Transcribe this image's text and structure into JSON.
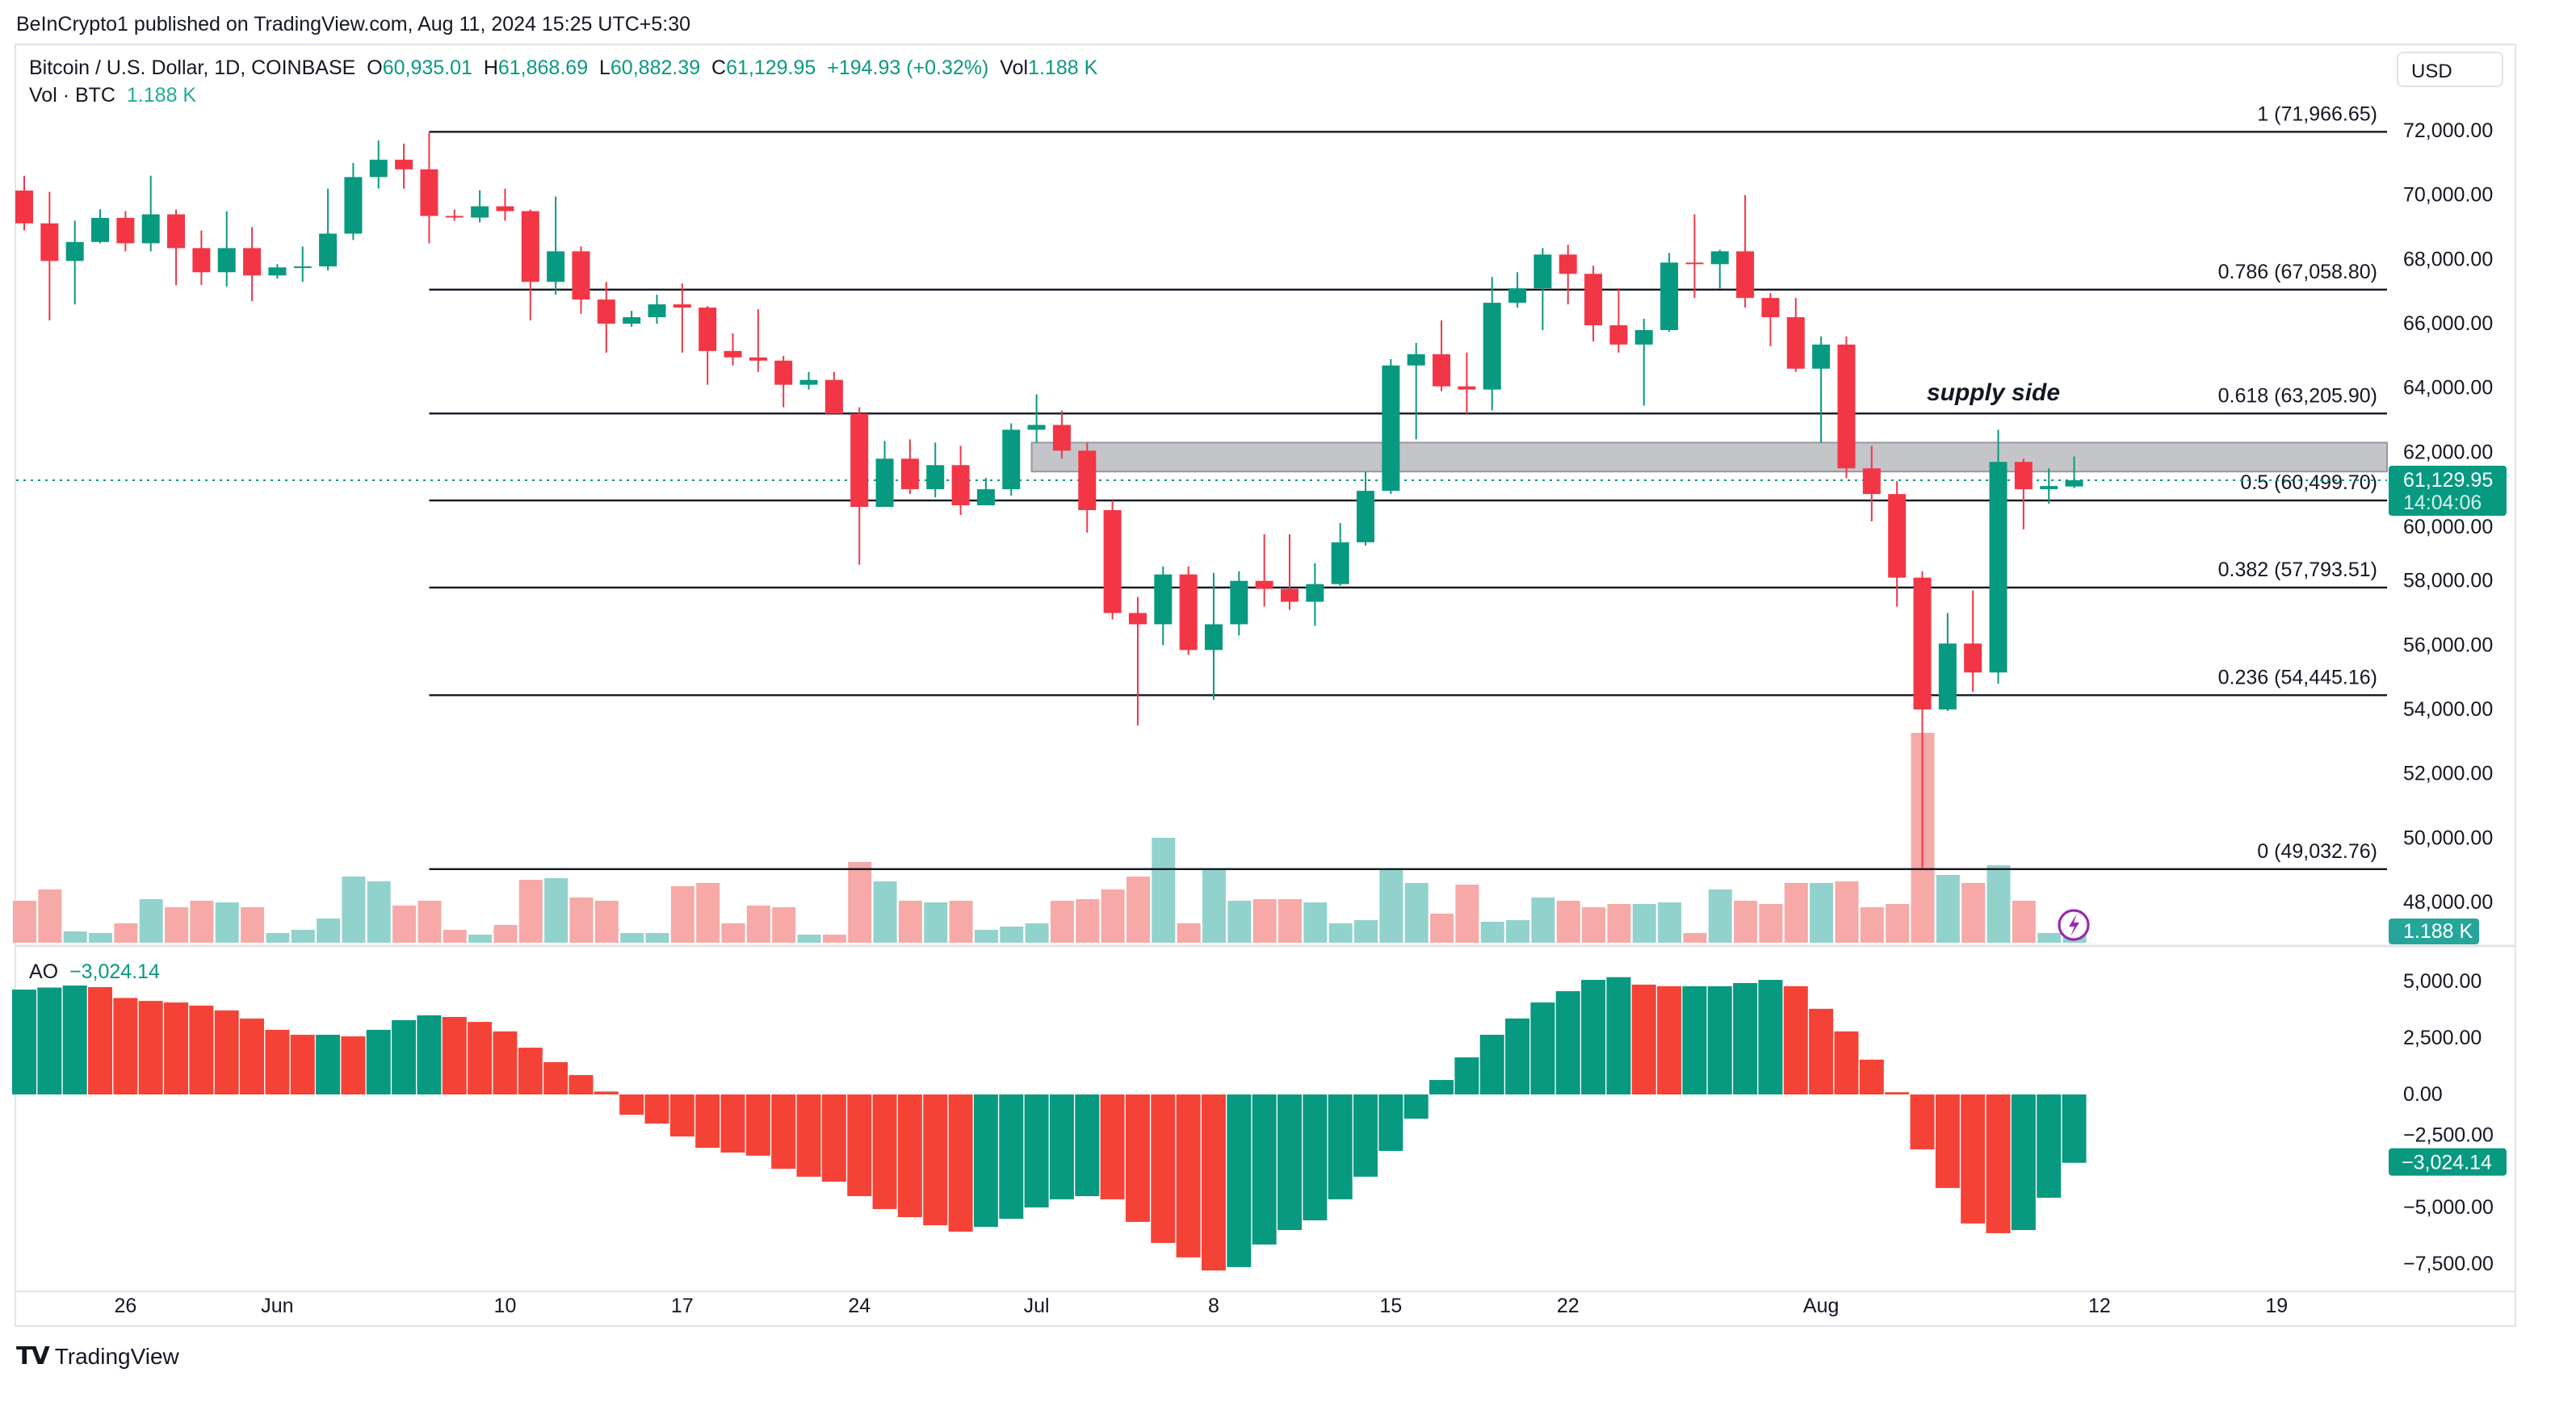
{
  "published": "BeInCrypto1 published on TradingView.com, Aug 11, 2024 15:25 UTC+5:30",
  "legend": {
    "symbol": "Bitcoin / U.S. Dollar, 1D, COINBASE",
    "o_label": "O",
    "o": "60,935.01",
    "h_label": "H",
    "h": "61,868.69",
    "l_label": "L",
    "l": "60,882.39",
    "c_label": "C",
    "c": "61,129.95",
    "change": "+194.93 (+0.32%)",
    "vol_label": "Vol",
    "vol": "1.188 K",
    "vol_series": "Vol · BTC",
    "vol_series_value": "1.188 K"
  },
  "currency_button": "USD",
  "ao_legend": {
    "label": "AO",
    "value": "−3,024.14"
  },
  "price_badge": {
    "price": "61,129.95",
    "countdown": "14:04:06"
  },
  "volume_badge": "1.188 K",
  "ao_badge": "−3,024.14",
  "annotation": "supply side",
  "brand": "TradingView",
  "colors": {
    "up": "#089981",
    "down": "#f23645",
    "vol_up": "#92d2cc",
    "vol_down": "#f7a9a7",
    "ao_up": "#089981",
    "ao_down": "#f44336",
    "zone": "#c4c5c9",
    "lightning": "#9c27b0"
  },
  "chart_data": {
    "type": "candlestick",
    "start_date": "2024-05-22",
    "ylim": [
      46000,
      73000
    ],
    "price_ticks": [
      "72,000.00",
      "70,000.00",
      "68,000.00",
      "66,000.00",
      "64,000.00",
      "62,000.00",
      "60,000.00",
      "58,000.00",
      "56,000.00",
      "54,000.00",
      "52,000.00",
      "50,000.00",
      "48,000.00"
    ],
    "price_tick_values": [
      72000,
      70000,
      68000,
      66000,
      64000,
      62000,
      60000,
      58000,
      56000,
      54000,
      52000,
      50000,
      48000
    ],
    "date_ticks": [
      {
        "label": "26",
        "date": "2024-05-26"
      },
      {
        "label": "Jun",
        "date": "2024-06-01"
      },
      {
        "label": "10",
        "date": "2024-06-10"
      },
      {
        "label": "17",
        "date": "2024-06-17"
      },
      {
        "label": "24",
        "date": "2024-06-24"
      },
      {
        "label": "Jul",
        "date": "2024-07-01"
      },
      {
        "label": "8",
        "date": "2024-07-08"
      },
      {
        "label": "15",
        "date": "2024-07-15"
      },
      {
        "label": "22",
        "date": "2024-07-22"
      },
      {
        "label": "Aug",
        "date": "2024-08-01"
      },
      {
        "label": "12",
        "date": "2024-08-12"
      },
      {
        "label": "19",
        "date": "2024-08-19"
      }
    ],
    "ohlc": [
      [
        70140,
        70600,
        68900,
        69120
      ],
      [
        69120,
        70100,
        66100,
        67950
      ],
      [
        67950,
        69200,
        66600,
        68540
      ],
      [
        68540,
        69560,
        68500,
        69290
      ],
      [
        69290,
        69500,
        68250,
        68500
      ],
      [
        68500,
        70600,
        68250,
        69400
      ],
      [
        69400,
        69550,
        67200,
        68350
      ],
      [
        68350,
        68900,
        67200,
        67600
      ],
      [
        67600,
        69500,
        67150,
        68350
      ],
      [
        68350,
        69000,
        66700,
        67500
      ],
      [
        67500,
        67850,
        67400,
        67750
      ],
      [
        67750,
        68400,
        67300,
        67780
      ],
      [
        67780,
        70200,
        67650,
        68800
      ],
      [
        68800,
        71000,
        68600,
        70560
      ],
      [
        70560,
        71700,
        70200,
        71100
      ],
      [
        71100,
        71600,
        70200,
        70800
      ],
      [
        70800,
        71950,
        68500,
        69350
      ],
      [
        69350,
        69550,
        69200,
        69300
      ],
      [
        69300,
        70150,
        69150,
        69650
      ],
      [
        69650,
        70200,
        69200,
        69500
      ],
      [
        69500,
        69550,
        66100,
        67300
      ],
      [
        67300,
        69950,
        66900,
        68250
      ],
      [
        68250,
        68400,
        66300,
        66750
      ],
      [
        66750,
        67300,
        65100,
        66000
      ],
      [
        66000,
        66400,
        65900,
        66200
      ],
      [
        66200,
        66900,
        66000,
        66600
      ],
      [
        66600,
        67250,
        65100,
        66500
      ],
      [
        66500,
        66550,
        64100,
        65150
      ],
      [
        65150,
        65700,
        64700,
        64950
      ],
      [
        64950,
        66450,
        64500,
        64850
      ],
      [
        64850,
        65000,
        63400,
        64100
      ],
      [
        64100,
        64500,
        63950,
        64250
      ],
      [
        64250,
        64500,
        63200,
        63200
      ],
      [
        63200,
        63400,
        58500,
        60300
      ],
      [
        60300,
        62350,
        60300,
        61800
      ],
      [
        61800,
        62400,
        60700,
        60850
      ],
      [
        60850,
        62300,
        60600,
        61600
      ],
      [
        61600,
        62200,
        60050,
        60350
      ],
      [
        60350,
        61200,
        60350,
        60850
      ],
      [
        60850,
        62900,
        60650,
        62700
      ],
      [
        62700,
        63800,
        62300,
        62850
      ],
      [
        62850,
        63300,
        61800,
        62050
      ],
      [
        62050,
        62300,
        59500,
        60200
      ],
      [
        60200,
        60500,
        56800,
        57000
      ],
      [
        57000,
        57500,
        53500,
        56650
      ],
      [
        56650,
        58450,
        56000,
        58200
      ],
      [
        58200,
        58450,
        55700,
        55850
      ],
      [
        55850,
        58250,
        54300,
        56650
      ],
      [
        56650,
        58300,
        56300,
        58000
      ],
      [
        58000,
        59450,
        57200,
        57750
      ],
      [
        57750,
        59450,
        57100,
        57350
      ],
      [
        57350,
        58550,
        56600,
        57900
      ],
      [
        57900,
        59800,
        57850,
        59200
      ],
      [
        59200,
        61400,
        59100,
        60800
      ],
      [
        60800,
        64900,
        60700,
        64700
      ],
      [
        64700,
        65400,
        62400,
        65050
      ],
      [
        65050,
        66100,
        63900,
        64050
      ],
      [
        64050,
        65100,
        63200,
        63950
      ],
      [
        63950,
        67450,
        63300,
        66650
      ],
      [
        66650,
        67600,
        66500,
        67100
      ],
      [
        67100,
        68350,
        65800,
        68150
      ],
      [
        68150,
        68450,
        66600,
        67550
      ],
      [
        67550,
        67800,
        65450,
        65950
      ],
      [
        65950,
        67100,
        65100,
        65350
      ],
      [
        65350,
        66150,
        63450,
        65800
      ],
      [
        65800,
        68200,
        65750,
        67900
      ],
      [
        67900,
        69400,
        66800,
        67850
      ],
      [
        67850,
        68300,
        67100,
        68250
      ],
      [
        68250,
        70000,
        66500,
        66800
      ],
      [
        66800,
        66950,
        65300,
        66200
      ],
      [
        66200,
        66800,
        64500,
        64600
      ],
      [
        64600,
        65600,
        62300,
        65350
      ],
      [
        65350,
        65600,
        61200,
        61500
      ],
      [
        61500,
        62200,
        59850,
        60700
      ],
      [
        60700,
        61100,
        57200,
        58100
      ],
      [
        58100,
        58300,
        49050,
        54000
      ],
      [
        54000,
        57000,
        53950,
        56050
      ],
      [
        56050,
        57700,
        54550,
        55150
      ],
      [
        55150,
        62700,
        54800,
        61700
      ],
      [
        61700,
        61800,
        59600,
        60850
      ],
      [
        60850,
        61500,
        60400,
        60950
      ],
      [
        60935.01,
        61868.69,
        60882.39,
        61129.95
      ]
    ],
    "volume_k": [
      5.2,
      6.6,
      1.4,
      1.2,
      2.4,
      5.4,
      4.4,
      5.2,
      5.0,
      4.4,
      1.2,
      1.6,
      3.0,
      8.2,
      7.6,
      4.6,
      5.2,
      1.6,
      1.0,
      2.2,
      7.8,
      8.0,
      5.6,
      5.2,
      1.2,
      1.2,
      7.0,
      7.4,
      2.4,
      4.6,
      4.4,
      1.0,
      1.0,
      10.0,
      7.6,
      5.2,
      5.0,
      5.2,
      1.6,
      2.0,
      2.4,
      5.2,
      5.4,
      6.6,
      8.2,
      13.0,
      2.4,
      9.2,
      5.2,
      5.4,
      5.4,
      5.0,
      2.4,
      2.8,
      9.2,
      7.4,
      3.6,
      7.2,
      2.6,
      2.8,
      5.6,
      5.2,
      4.4,
      4.8,
      4.8,
      5.0,
      1.2,
      6.6,
      5.2,
      4.8,
      7.4,
      7.4,
      7.6,
      4.4,
      4.8,
      26.0,
      8.4,
      7.4,
      9.6,
      5.2,
      1.2,
      1.188
    ],
    "ao": [
      4640,
      4730,
      4820,
      4750,
      4270,
      4140,
      4070,
      3930,
      3720,
      3360,
      2860,
      2640,
      2640,
      2570,
      2860,
      3290,
      3500,
      3430,
      3210,
      2790,
      2070,
      1430,
      860,
      130,
      -900,
      -1290,
      -1860,
      -2360,
      -2570,
      -2710,
      -3290,
      -3640,
      -3860,
      -4500,
      -5070,
      -5430,
      -5790,
      -6070,
      -5860,
      -5500,
      -5000,
      -4640,
      -4500,
      -4640,
      -5640,
      -6570,
      -7210,
      -7790,
      -7640,
      -6640,
      -6000,
      -5570,
      -4640,
      -3640,
      -2500,
      -1070,
      640,
      1640,
      2640,
      3360,
      4070,
      4570,
      5070,
      5190,
      4860,
      4790,
      4790,
      4790,
      4930,
      5070,
      4790,
      3790,
      2790,
      1540,
      100,
      -2430,
      -4140,
      -5710,
      -6140,
      -6000,
      -4570,
      -3024.14
    ],
    "ao_ticks": [
      "5,000.00",
      "2,500.00",
      "0.00",
      "−2,500.00",
      "−5,000.00",
      "−7,500.00"
    ],
    "ao_tick_values": [
      5000,
      2500,
      0,
      -2500,
      -5000,
      -7500
    ],
    "fib_levels": [
      {
        "label": "1 (71,966.65)",
        "value": 71966.65
      },
      {
        "label": "0.786 (67,058.80)",
        "value": 67058.8
      },
      {
        "label": "0.618 (63,205.90)",
        "value": 63205.9
      },
      {
        "label": "0.5 (60,499.70)",
        "value": 60499.7
      },
      {
        "label": "0.382 (57,793.51)",
        "value": 57793.51
      },
      {
        "label": "0.236 (54,445.16)",
        "value": 54445.16
      },
      {
        "label": "0 (49,032.76)",
        "value": 49032.76
      }
    ],
    "fib_start_date": "2024-06-07",
    "supply_zone": {
      "from_date": "2024-07-01",
      "top": 62300,
      "bottom": 61400
    },
    "last_price": 61129.95
  }
}
